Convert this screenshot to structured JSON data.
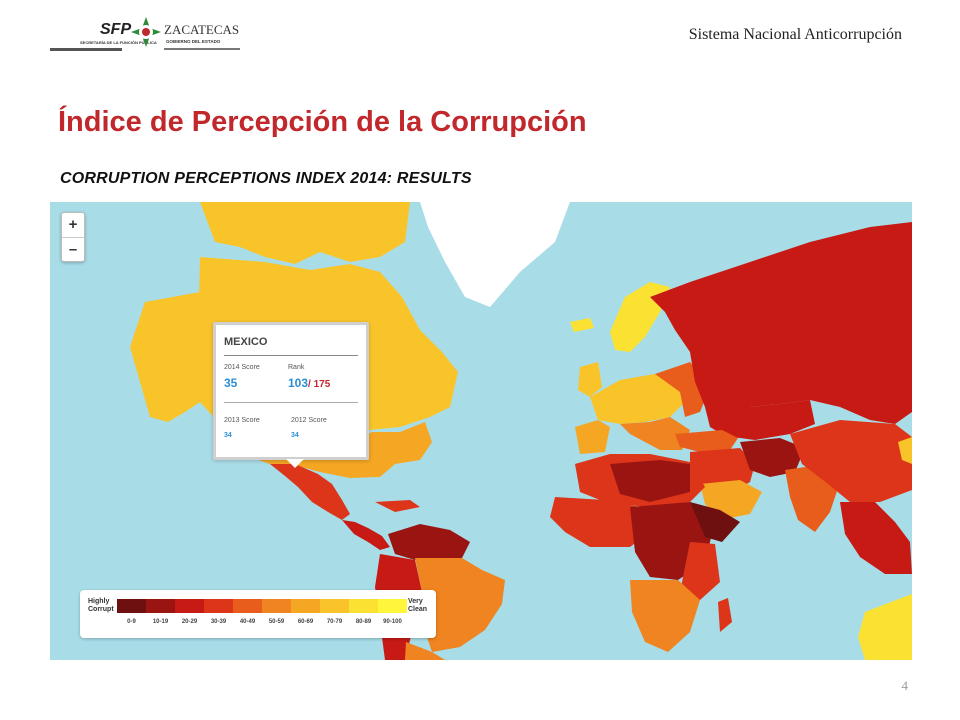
{
  "header": {
    "logo_sfp": "SFP",
    "logo_sfp_sub": "SECRETARÍA DE LA FUNCIÓN PÚBLICA",
    "logo_zac": "ZACATECAS",
    "logo_zac_sub": "GOBIERNO DEL ESTADO",
    "right_text": "Sistema Nacional Anticorrupción"
  },
  "slide": {
    "title": "Índice de Percepción de la Corrupción",
    "subtitle": "CORRUPTION PERCEPTIONS INDEX 2014: RESULTS",
    "page_number": "4"
  },
  "map": {
    "zoom_in": "+",
    "zoom_out": "–",
    "popup": {
      "country": "MEXICO",
      "score_2014_label": "2014 Score",
      "score_2014": "35",
      "rank_label": "Rank",
      "rank": "103",
      "rank_total": "/ 175",
      "score_2013_label": "2013 Score",
      "score_2013": "34",
      "score_2012_label": "2012 Score",
      "score_2012": "34"
    },
    "legend": {
      "low_label_1": "Highly",
      "low_label_2": "Corrupt",
      "high_label_1": "Very",
      "high_label_2": "Clean",
      "ranges": [
        "0-9",
        "10-19",
        "20-29",
        "30-39",
        "40-49",
        "50-59",
        "60-69",
        "70-79",
        "80-89",
        "90-100"
      ],
      "colors": [
        "#6e1010",
        "#9a1512",
        "#c81a14",
        "#dd3519",
        "#e85d1c",
        "#ef8420",
        "#f5a623",
        "#f9c42a",
        "#fbe232",
        "#fff53a"
      ]
    },
    "ocean_color": "#a8dde8"
  }
}
